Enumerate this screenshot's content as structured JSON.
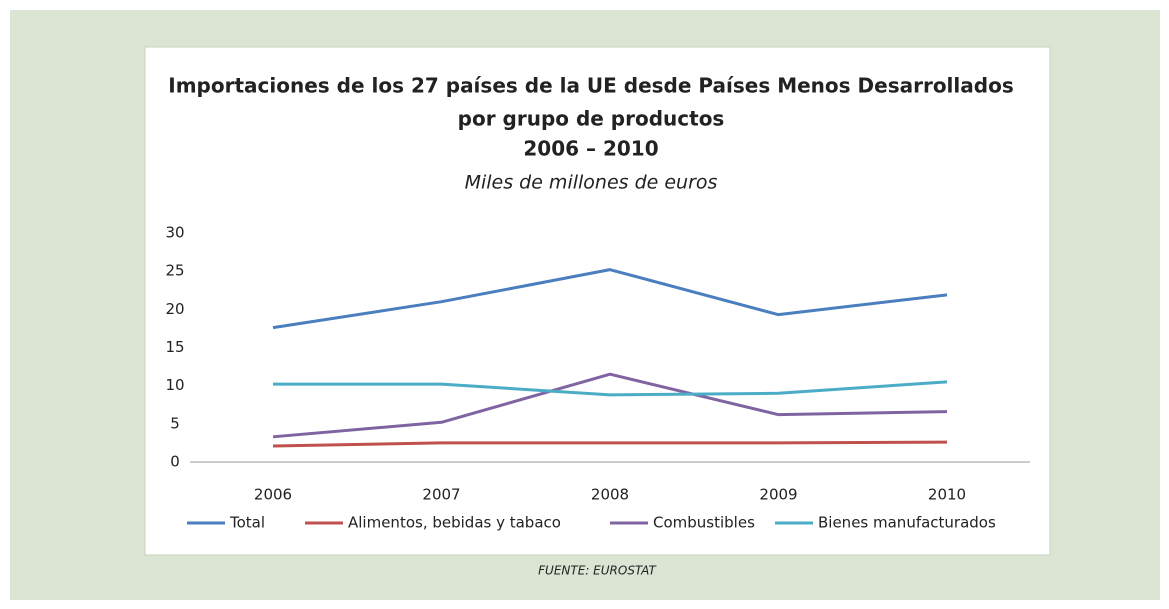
{
  "chart_data": {
    "type": "line",
    "title": [
      "Importaciones de los 27 países de la UE desde Países Menos Desarrollados",
      "por grupo de productos",
      "2006 – 2010"
    ],
    "subtitle": "Miles de millones de euros",
    "source": "FUENTE: EUROSTAT",
    "categories": [
      "2006",
      "2007",
      "2008",
      "2009",
      "2010"
    ],
    "series": [
      {
        "name": "Total",
        "color": "#4a7ebf",
        "values": [
          17.6,
          21.0,
          25.2,
          19.3,
          21.9
        ]
      },
      {
        "name": "Alimentos, bebidas y tabaco",
        "color": "#c0504d",
        "values": [
          2.1,
          2.5,
          2.5,
          2.5,
          2.6
        ]
      },
      {
        "name": "Combustibles",
        "color": "#8064a2",
        "values": [
          3.3,
          5.2,
          11.5,
          6.2,
          6.6
        ]
      },
      {
        "name": "Bienes manufacturados",
        "color": "#4bacc6",
        "values": [
          10.2,
          10.2,
          8.8,
          9.0,
          10.5
        ]
      }
    ],
    "ylim": [
      0,
      30
    ],
    "yticks": [
      0,
      5,
      10,
      15,
      20,
      25,
      30
    ],
    "grid": false,
    "legend": "bottom"
  }
}
